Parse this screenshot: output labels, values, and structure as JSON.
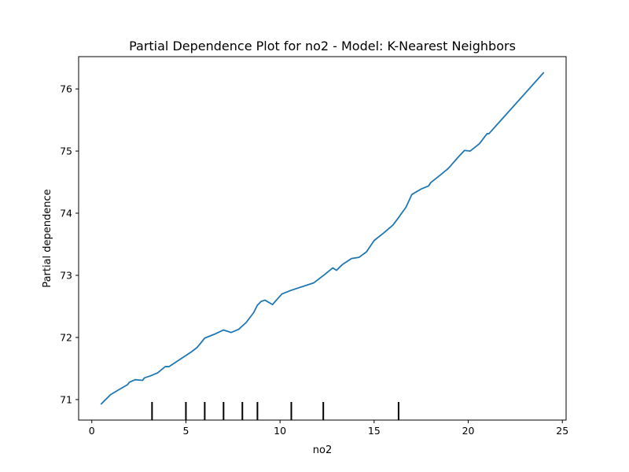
{
  "chart_data": {
    "type": "line",
    "title": "Partial Dependence Plot for no2 - Model: K-Nearest Neighbors",
    "xlabel": "no2",
    "ylabel": "Partial dependence",
    "xlim": [
      -0.7,
      25.2
    ],
    "ylim": [
      70.67,
      76.52
    ],
    "xticks": [
      0,
      5,
      10,
      15,
      20,
      25
    ],
    "yticks": [
      71,
      72,
      73,
      74,
      75,
      76
    ],
    "grid": false,
    "line_color": "#1f77b4",
    "series": [
      {
        "x": [
          0.5,
          1.0,
          1.5,
          1.9,
          2.0,
          2.3,
          2.7,
          2.8,
          3.1,
          3.5,
          3.9,
          4.1,
          4.5,
          5.0,
          5.3,
          5.6,
          6.0,
          6.5,
          7.0,
          7.4,
          7.8,
          8.2,
          8.6,
          8.8,
          9.0,
          9.2,
          9.6,
          10.1,
          10.6,
          11.2,
          11.8,
          12.1,
          12.4,
          12.8,
          13.0,
          13.3,
          13.8,
          14.2,
          14.6,
          15.0,
          15.5,
          16.0,
          16.3,
          16.7,
          17.0,
          17.5,
          17.9,
          18.0,
          18.5,
          18.9,
          19.0,
          19.4,
          19.8,
          20.1,
          20.6,
          21.0,
          21.1,
          24.0
        ],
        "y": [
          70.93,
          71.08,
          71.17,
          71.24,
          71.28,
          71.32,
          71.31,
          71.35,
          71.38,
          71.43,
          71.53,
          71.53,
          71.61,
          71.71,
          71.77,
          71.84,
          71.99,
          72.05,
          72.12,
          72.08,
          72.13,
          72.24,
          72.4,
          72.52,
          72.58,
          72.6,
          72.53,
          72.7,
          72.76,
          72.82,
          72.88,
          72.95,
          73.02,
          73.12,
          73.08,
          73.17,
          73.27,
          73.29,
          73.38,
          73.56,
          73.68,
          73.81,
          73.93,
          74.1,
          74.3,
          74.39,
          74.44,
          74.49,
          74.61,
          74.71,
          74.74,
          74.88,
          75.01,
          75.0,
          75.12,
          75.28,
          75.28,
          76.26
        ]
      }
    ],
    "rug_x": [
      3.2,
      5.0,
      6.0,
      7.0,
      8.0,
      8.8,
      10.6,
      12.3,
      16.3
    ]
  }
}
